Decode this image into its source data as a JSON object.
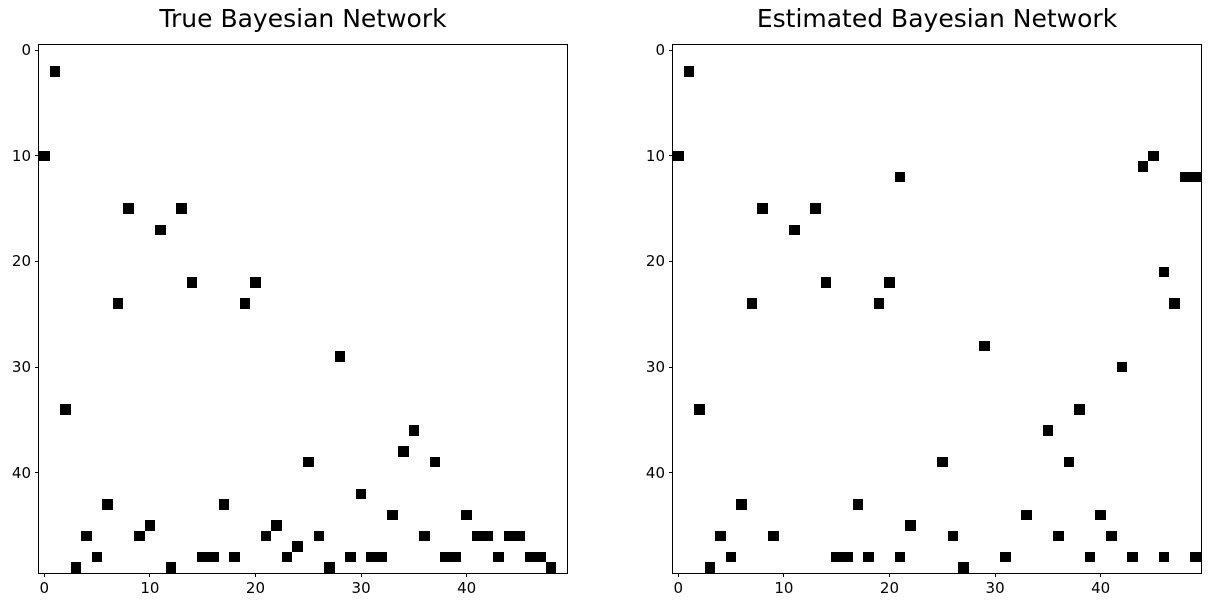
{
  "colors": {
    "background": "#ffffff",
    "marker": "#000000",
    "spine": "#000000",
    "text": "#000000"
  },
  "chart_data": [
    {
      "type": "heatmap",
      "title": "True Bayesian Network",
      "matrix_size": 50,
      "x_ticks": [
        0,
        10,
        20,
        30,
        40
      ],
      "y_ticks": [
        0,
        10,
        20,
        30,
        40
      ],
      "x_range": [
        -0.5,
        49.5
      ],
      "y_range": [
        49.5,
        -0.5
      ],
      "grid": false,
      "legend": "none",
      "cell_color": "#000000",
      "cells_col_row": [
        [
          1,
          2
        ],
        [
          0,
          10
        ],
        [
          8,
          15
        ],
        [
          13,
          15
        ],
        [
          11,
          17
        ],
        [
          14,
          22
        ],
        [
          20,
          22
        ],
        [
          7,
          24
        ],
        [
          19,
          24
        ],
        [
          28,
          29
        ],
        [
          2,
          34
        ],
        [
          35,
          36
        ],
        [
          34,
          38
        ],
        [
          25,
          39
        ],
        [
          37,
          39
        ],
        [
          30,
          42
        ],
        [
          6,
          43
        ],
        [
          17,
          43
        ],
        [
          33,
          44
        ],
        [
          40,
          44
        ],
        [
          10,
          45
        ],
        [
          22,
          45
        ],
        [
          4,
          46
        ],
        [
          9,
          46
        ],
        [
          21,
          46
        ],
        [
          26,
          46
        ],
        [
          36,
          46
        ],
        [
          41,
          46
        ],
        [
          42,
          46
        ],
        [
          44,
          46
        ],
        [
          45,
          46
        ],
        [
          24,
          47
        ],
        [
          5,
          48
        ],
        [
          15,
          48
        ],
        [
          16,
          48
        ],
        [
          18,
          48
        ],
        [
          23,
          48
        ],
        [
          29,
          48
        ],
        [
          31,
          48
        ],
        [
          32,
          48
        ],
        [
          38,
          48
        ],
        [
          39,
          48
        ],
        [
          43,
          48
        ],
        [
          46,
          48
        ],
        [
          47,
          48
        ],
        [
          3,
          49
        ],
        [
          12,
          49
        ],
        [
          27,
          49
        ],
        [
          48,
          49
        ]
      ]
    },
    {
      "type": "heatmap",
      "title": "Estimated Bayesian Network",
      "matrix_size": 50,
      "x_ticks": [
        0,
        10,
        20,
        30,
        40
      ],
      "y_ticks": [
        0,
        10,
        20,
        30,
        40
      ],
      "x_range": [
        -0.5,
        49.5
      ],
      "y_range": [
        49.5,
        -0.5
      ],
      "grid": false,
      "legend": "none",
      "cell_color": "#000000",
      "cells_col_row": [
        [
          1,
          2
        ],
        [
          0,
          10
        ],
        [
          45,
          10
        ],
        [
          44,
          11
        ],
        [
          21,
          12
        ],
        [
          48,
          12
        ],
        [
          49,
          12
        ],
        [
          8,
          15
        ],
        [
          13,
          15
        ],
        [
          11,
          17
        ],
        [
          46,
          21
        ],
        [
          14,
          22
        ],
        [
          20,
          22
        ],
        [
          7,
          24
        ],
        [
          19,
          24
        ],
        [
          47,
          24
        ],
        [
          29,
          28
        ],
        [
          42,
          30
        ],
        [
          2,
          34
        ],
        [
          38,
          34
        ],
        [
          35,
          36
        ],
        [
          25,
          39
        ],
        [
          37,
          39
        ],
        [
          6,
          43
        ],
        [
          17,
          43
        ],
        [
          33,
          44
        ],
        [
          40,
          44
        ],
        [
          22,
          45
        ],
        [
          4,
          46
        ],
        [
          9,
          46
        ],
        [
          26,
          46
        ],
        [
          36,
          46
        ],
        [
          41,
          46
        ],
        [
          5,
          48
        ],
        [
          15,
          48
        ],
        [
          16,
          48
        ],
        [
          18,
          48
        ],
        [
          21,
          48
        ],
        [
          31,
          48
        ],
        [
          39,
          48
        ],
        [
          43,
          48
        ],
        [
          46,
          48
        ],
        [
          49,
          48
        ],
        [
          3,
          49
        ],
        [
          27,
          49
        ]
      ]
    }
  ]
}
